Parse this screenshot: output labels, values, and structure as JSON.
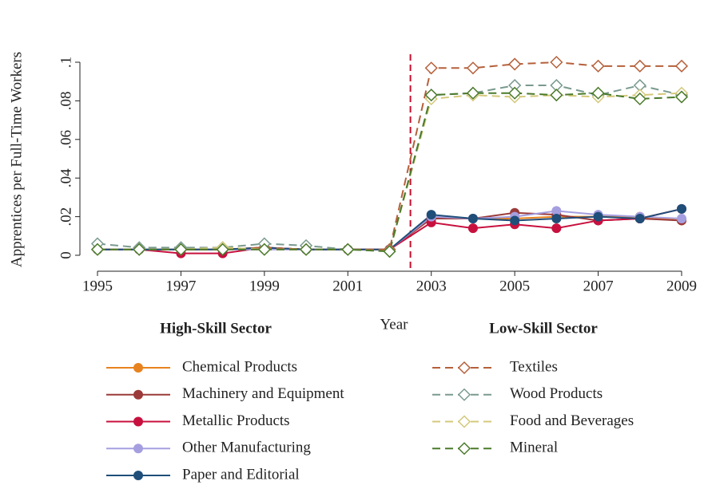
{
  "chart_data": {
    "type": "line",
    "ylabel": "Apprentices per Full-Time Workers",
    "xlabel": "Year",
    "x": [
      1995,
      1996,
      1997,
      1998,
      1999,
      2000,
      2001,
      2002,
      2003,
      2004,
      2005,
      2006,
      2007,
      2008,
      2009
    ],
    "xlim": [
      1995,
      2009
    ],
    "xticks": [
      1995,
      1997,
      1999,
      2001,
      2003,
      2005,
      2007,
      2009
    ],
    "ylim": [
      0,
      0.1
    ],
    "yticks": [
      0,
      {
        "value": 0.02,
        "label": ".02"
      },
      {
        "value": 0.04,
        "label": ".04"
      },
      {
        "value": 0.06,
        "label": ".06"
      },
      {
        "value": 0.08,
        "label": ".08"
      },
      {
        "value": 0.1,
        "label": ".1"
      }
    ],
    "vline": 2002.5,
    "vline_color": "#c8102e",
    "series": [
      {
        "name": "Chemical Products",
        "group": "High-Skill Sector",
        "color": "#e8821e",
        "style": "solid",
        "marker": "circle",
        "values": [
          0.003,
          0.003,
          0.003,
          0.003,
          0.004,
          0.003,
          0.003,
          0.003,
          0.019,
          0.019,
          0.019,
          0.02,
          0.02,
          0.02,
          0.018
        ]
      },
      {
        "name": "Machinery and Equipment",
        "group": "High-Skill Sector",
        "color": "#9b3a3a",
        "style": "solid",
        "marker": "circle",
        "values": [
          0.003,
          0.003,
          0.003,
          0.003,
          0.004,
          0.003,
          0.003,
          0.003,
          0.019,
          0.019,
          0.022,
          0.021,
          0.018,
          0.019,
          0.018
        ]
      },
      {
        "name": "Metallic Products",
        "group": "High-Skill Sector",
        "color": "#c8103e",
        "style": "solid",
        "marker": "circle",
        "values": [
          0.003,
          0.003,
          0.001,
          0.001,
          0.004,
          0.003,
          0.003,
          0.003,
          0.017,
          0.014,
          0.016,
          0.014,
          0.018,
          0.019,
          0.024
        ]
      },
      {
        "name": "Other Manufacturing",
        "group": "High-Skill Sector",
        "color": "#a59fe0",
        "style": "solid",
        "marker": "circle",
        "values": [
          0.003,
          0.003,
          0.003,
          0.003,
          0.003,
          0.003,
          0.003,
          0.003,
          0.02,
          0.019,
          0.02,
          0.023,
          0.021,
          0.02,
          0.019
        ]
      },
      {
        "name": "Paper and Editorial",
        "group": "High-Skill Sector",
        "color": "#1f4e79",
        "style": "solid",
        "marker": "circle",
        "values": [
          0.003,
          0.003,
          0.003,
          0.003,
          0.004,
          0.003,
          0.003,
          0.003,
          0.021,
          0.019,
          0.018,
          0.019,
          0.02,
          0.019,
          0.024
        ]
      },
      {
        "name": "Textiles",
        "group": "Low-Skill Sector",
        "color": "#b5603a",
        "style": "dashed",
        "marker": "diamond",
        "values": [
          0.003,
          0.003,
          0.003,
          0.003,
          0.004,
          0.003,
          0.003,
          0.003,
          0.097,
          0.097,
          0.099,
          0.1,
          0.098,
          0.098,
          0.098
        ]
      },
      {
        "name": "Wood Products",
        "group": "Low-Skill Sector",
        "color": "#7a9a8e",
        "style": "dashed",
        "marker": "diamond",
        "values": [
          0.006,
          0.004,
          0.004,
          0.004,
          0.006,
          0.005,
          0.003,
          0.002,
          0.083,
          0.084,
          0.088,
          0.088,
          0.083,
          0.088,
          0.083
        ]
      },
      {
        "name": "Food and Beverages",
        "group": "Low-Skill Sector",
        "color": "#d4c87a",
        "style": "dashed",
        "marker": "diamond",
        "values": [
          0.003,
          0.003,
          0.003,
          0.004,
          0.003,
          0.003,
          0.003,
          0.002,
          0.081,
          0.083,
          0.082,
          0.083,
          0.082,
          0.083,
          0.084
        ]
      },
      {
        "name": "Mineral",
        "group": "Low-Skill Sector",
        "color": "#4a7a2a",
        "style": "dashed",
        "marker": "diamond",
        "values": [
          0.003,
          0.003,
          0.003,
          0.003,
          0.003,
          0.003,
          0.003,
          0.002,
          0.083,
          0.084,
          0.084,
          0.083,
          0.084,
          0.081,
          0.082
        ]
      }
    ]
  }
}
